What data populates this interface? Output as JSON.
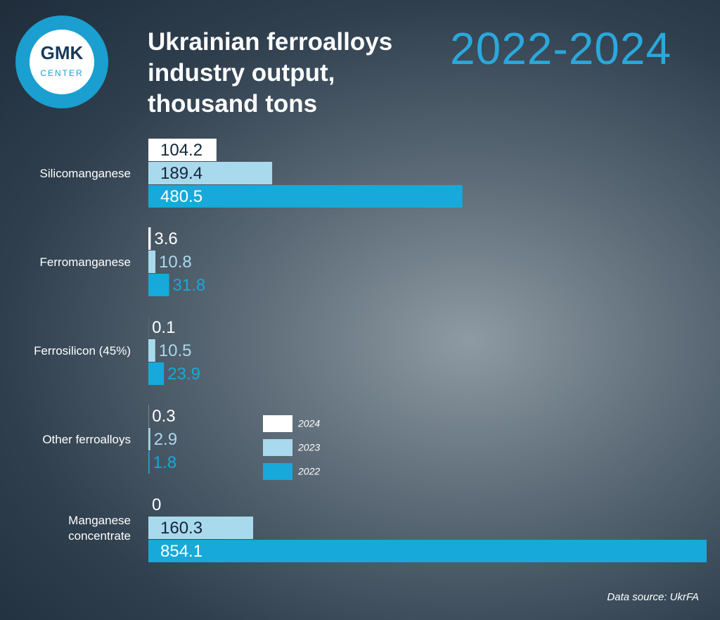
{
  "logo": {
    "name": "GMK",
    "sub": "CENTER"
  },
  "chart_data": {
    "type": "bar",
    "orientation": "horizontal",
    "title": "Ukrainian ferroalloys industry output, thousand tons",
    "subtitle": "2022-2024",
    "categories": [
      "Silicomanganese",
      "Ferromanganese",
      "Ferrosilicon (45%)",
      "Other ferroalloys",
      "Manganese concentrate"
    ],
    "series": [
      {
        "name": "2024",
        "color": "#ffffff",
        "values": [
          104.2,
          3.6,
          0.1,
          0.3,
          0
        ]
      },
      {
        "name": "2023",
        "color": "#a9d9ec",
        "values": [
          189.4,
          10.8,
          10.5,
          2.9,
          160.3
        ]
      },
      {
        "name": "2022",
        "color": "#17a9d9",
        "values": [
          480.5,
          31.8,
          23.9,
          1.8,
          854.1
        ]
      }
    ],
    "source": "Data source: UkrFA"
  }
}
